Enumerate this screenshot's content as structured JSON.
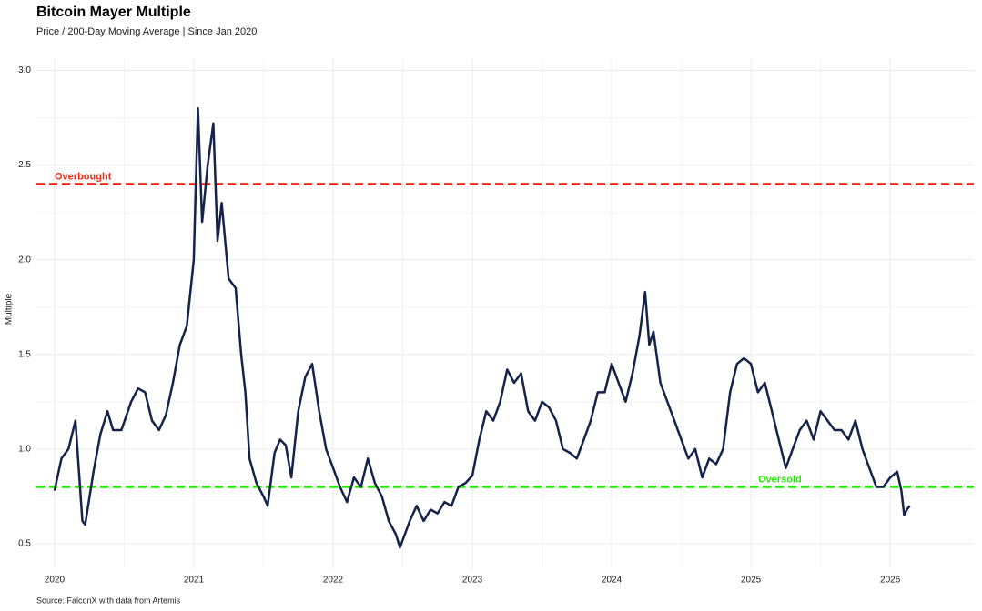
{
  "chart_data": {
    "type": "line",
    "title": "Bitcoin Mayer Multiple",
    "subtitle": "Price / 200-Day Moving Average | Since Jan 2020",
    "y_label": "Multiple",
    "source": "Source: FalconX with data from Artemis",
    "color": "#15224a",
    "x": [
      2020.0,
      2020.05,
      2020.1,
      2020.15,
      2020.2,
      2020.22,
      2020.28,
      2020.33,
      2020.38,
      2020.42,
      2020.48,
      2020.55,
      2020.6,
      2020.65,
      2020.7,
      2020.75,
      2020.8,
      2020.85,
      2020.9,
      2020.95,
      2021.0,
      2021.03,
      2021.06,
      2021.1,
      2021.14,
      2021.17,
      2021.2,
      2021.25,
      2021.3,
      2021.34,
      2021.37,
      2021.4,
      2021.45,
      2021.5,
      2021.53,
      2021.58,
      2021.62,
      2021.66,
      2021.7,
      2021.75,
      2021.8,
      2021.85,
      2021.9,
      2021.95,
      2022.0,
      2022.05,
      2022.1,
      2022.15,
      2022.2,
      2022.25,
      2022.3,
      2022.35,
      2022.4,
      2022.45,
      2022.48,
      2022.55,
      2022.6,
      2022.65,
      2022.7,
      2022.75,
      2022.8,
      2022.85,
      2022.9,
      2022.95,
      2023.0,
      2023.05,
      2023.1,
      2023.15,
      2023.2,
      2023.25,
      2023.3,
      2023.35,
      2023.4,
      2023.45,
      2023.5,
      2023.55,
      2023.6,
      2023.65,
      2023.7,
      2023.75,
      2023.8,
      2023.85,
      2023.9,
      2023.95,
      2024.0,
      2024.05,
      2024.1,
      2024.15,
      2024.2,
      2024.24,
      2024.27,
      2024.3,
      2024.35,
      2024.4,
      2024.45,
      2024.5,
      2024.55,
      2024.6,
      2024.65,
      2024.7,
      2024.75,
      2024.8,
      2024.85,
      2024.9,
      2024.95,
      2025.0,
      2025.05,
      2025.1,
      2025.15,
      2025.2,
      2025.25,
      2025.3,
      2025.35,
      2025.4,
      2025.45,
      2025.5,
      2025.55,
      2025.6,
      2025.65,
      2025.7,
      2025.75,
      2025.8,
      2025.85,
      2025.9,
      2025.95,
      2026.0,
      2026.05,
      2026.08,
      2026.1,
      2026.12,
      2026.14
    ],
    "values": [
      0.78,
      0.95,
      1.0,
      1.15,
      0.62,
      0.6,
      0.88,
      1.08,
      1.2,
      1.1,
      1.1,
      1.25,
      1.32,
      1.3,
      1.15,
      1.1,
      1.18,
      1.35,
      1.55,
      1.65,
      2.0,
      2.8,
      2.2,
      2.5,
      2.72,
      2.1,
      2.3,
      1.9,
      1.85,
      1.5,
      1.3,
      0.95,
      0.82,
      0.75,
      0.7,
      0.98,
      1.05,
      1.02,
      0.85,
      1.2,
      1.38,
      1.45,
      1.2,
      1.0,
      0.9,
      0.8,
      0.72,
      0.85,
      0.8,
      0.95,
      0.82,
      0.75,
      0.62,
      0.55,
      0.48,
      0.62,
      0.7,
      0.62,
      0.68,
      0.66,
      0.72,
      0.7,
      0.8,
      0.82,
      0.86,
      1.05,
      1.2,
      1.15,
      1.25,
      1.42,
      1.35,
      1.4,
      1.2,
      1.15,
      1.25,
      1.22,
      1.15,
      1.0,
      0.98,
      0.95,
      1.05,
      1.15,
      1.3,
      1.3,
      1.45,
      1.35,
      1.25,
      1.4,
      1.6,
      1.83,
      1.55,
      1.62,
      1.35,
      1.25,
      1.15,
      1.05,
      0.95,
      1.0,
      0.85,
      0.95,
      0.92,
      1.0,
      1.3,
      1.45,
      1.48,
      1.45,
      1.3,
      1.35,
      1.2,
      1.05,
      0.9,
      1.0,
      1.1,
      1.15,
      1.05,
      1.2,
      1.15,
      1.1,
      1.1,
      1.05,
      1.15,
      1.0,
      0.9,
      0.8,
      0.8,
      0.85,
      0.88,
      0.78,
      0.65,
      0.68,
      0.7
    ],
    "reference_lines": [
      {
        "value": 2.4,
        "label": "Overbought",
        "color": "#ee2a18"
      },
      {
        "value": 0.8,
        "label": "Oversold",
        "color": "#22ee00"
      }
    ],
    "xlim": [
      2019.87,
      2026.6
    ],
    "xticks": [
      2020,
      2021,
      2022,
      2023,
      2024,
      2025,
      2026
    ],
    "ylim": [
      0.37,
      3.06
    ],
    "yticks": [
      0.5,
      {
        "value": 1.0,
        "label": "1.0"
      },
      1.5,
      {
        "value": 2.0,
        "label": "2.0"
      },
      2.5,
      {
        "value": 3.0,
        "label": "3.0"
      }
    ],
    "grid": true
  }
}
